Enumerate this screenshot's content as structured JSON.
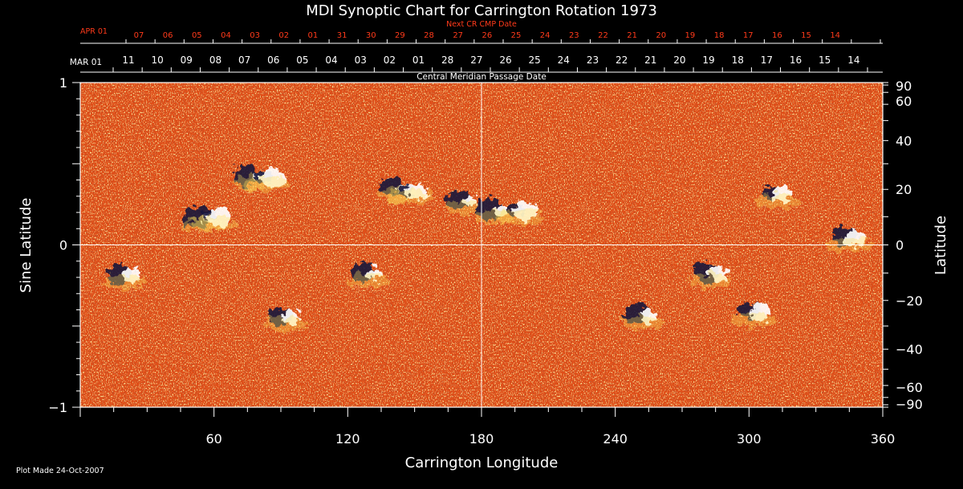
{
  "chart_data": {
    "type": "heatmap",
    "title": "MDI Synoptic Chart for Carrington Rotation 1973",
    "xlabel": "Carrington Longitude",
    "ylabel_left": "Sine Latitude",
    "ylabel_right": "Latitude",
    "xlim": [
      0,
      360
    ],
    "ylim": [
      -1,
      1
    ],
    "x_ticks": [
      60,
      120,
      180,
      240,
      300,
      360
    ],
    "y_ticks_left": [
      {
        "v": 1,
        "label": "1"
      },
      {
        "v": 0,
        "label": "0"
      },
      {
        "v": -1,
        "label": "−1"
      }
    ],
    "y_ticks_right": [
      {
        "deg": 90,
        "label": "90"
      },
      {
        "deg": 60,
        "label": "60"
      },
      {
        "deg": 40,
        "label": "40"
      },
      {
        "deg": 20,
        "label": "20"
      },
      {
        "deg": 0,
        "label": "0"
      },
      {
        "deg": -20,
        "label": "−20"
      },
      {
        "deg": -40,
        "label": "−40"
      },
      {
        "deg": -60,
        "label": "−60"
      },
      {
        "deg": -90,
        "label": "−90"
      }
    ],
    "grid_lines": {
      "longitude": 180,
      "sine_latitude": 0
    },
    "top_axis": {
      "title": "Central Meridian Passage Date",
      "first_label": "MAR 01",
      "dates": [
        "11",
        "10",
        "09",
        "08",
        "07",
        "06",
        "05",
        "04",
        "03",
        "02",
        "01",
        "28",
        "27",
        "26",
        "25",
        "24",
        "23",
        "22",
        "21",
        "20",
        "19",
        "18",
        "17",
        "16",
        "15",
        "14"
      ]
    },
    "next_axis": {
      "title": "Next CR CMP Date",
      "first_label": "APR 01",
      "dates": [
        "07",
        "06",
        "05",
        "04",
        "03",
        "02",
        "01",
        "31",
        "30",
        "29",
        "28",
        "27",
        "26",
        "25",
        "24",
        "23",
        "22",
        "21",
        "20",
        "19",
        "18",
        "17",
        "16",
        "15",
        "14"
      ]
    },
    "active_regions": [
      {
        "lon": 55,
        "sinlat": 0.17,
        "pos": 0.34,
        "neg": 1.0
      },
      {
        "lon": 60,
        "sinlat": 0.18,
        "pos": 1.0,
        "neg": 0.2
      },
      {
        "lon": 77,
        "sinlat": 0.43,
        "pos": 0.2,
        "neg": 0.9
      },
      {
        "lon": 84,
        "sinlat": 0.42,
        "pos": 1.0,
        "neg": 0.3
      },
      {
        "lon": 142,
        "sinlat": 0.36,
        "pos": 0.4,
        "neg": 0.7
      },
      {
        "lon": 148,
        "sinlat": 0.34,
        "pos": 0.8,
        "neg": 0.2
      },
      {
        "lon": 172,
        "sinlat": 0.28,
        "pos": 0.2,
        "neg": 0.8
      },
      {
        "lon": 186,
        "sinlat": 0.22,
        "pos": 0.3,
        "neg": 1.0
      },
      {
        "lon": 197,
        "sinlat": 0.22,
        "pos": 1.0,
        "neg": 0.2
      },
      {
        "lon": 20,
        "sinlat": -0.18,
        "pos": 0.6,
        "neg": 0.7
      },
      {
        "lon": 92,
        "sinlat": -0.44,
        "pos": 0.7,
        "neg": 0.6
      },
      {
        "lon": 129,
        "sinlat": -0.17,
        "pos": 0.5,
        "neg": 0.7
      },
      {
        "lon": 252,
        "sinlat": -0.43,
        "pos": 0.5,
        "neg": 0.9
      },
      {
        "lon": 283,
        "sinlat": -0.17,
        "pos": 0.7,
        "neg": 0.9
      },
      {
        "lon": 302,
        "sinlat": -0.41,
        "pos": 0.8,
        "neg": 0.6
      },
      {
        "lon": 312,
        "sinlat": 0.32,
        "pos": 0.7,
        "neg": 0.3
      },
      {
        "lon": 345,
        "sinlat": 0.05,
        "pos": 0.8,
        "neg": 0.7
      }
    ]
  },
  "footer": {
    "plot_made": "Plot Made 24-Oct-2007"
  },
  "colors": {
    "background": "#000000",
    "axis": "#ffffff",
    "next_cr": "#ff3a1a",
    "field_base": "#e8501a",
    "positive": "#ffffff",
    "negative": "#1a1a4a"
  }
}
